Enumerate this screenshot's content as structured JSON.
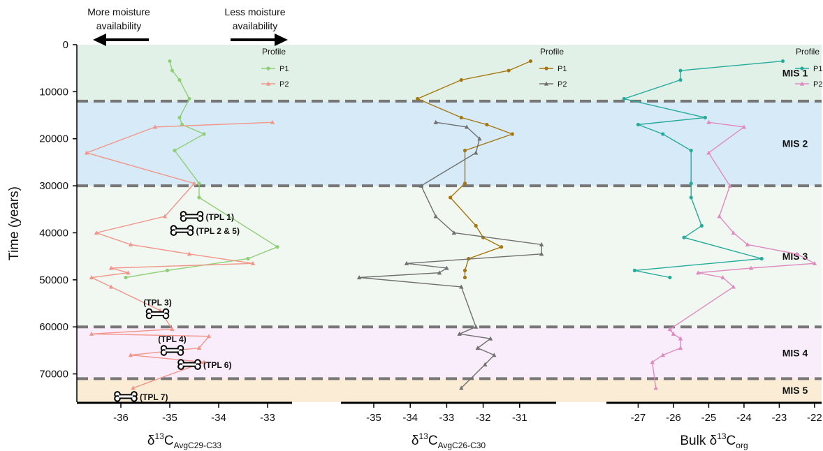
{
  "chart_data": {
    "type": "line",
    "y_axis": {
      "label": "Time (years)",
      "range": [
        0,
        76000
      ],
      "reversed": true,
      "ticks": [
        "0",
        "10000",
        "20000",
        "30000",
        "40000",
        "50000",
        "60000",
        "70000"
      ],
      "tick_values": [
        0,
        10000,
        20000,
        30000,
        40000,
        50000,
        60000,
        70000
      ]
    },
    "annotations": {
      "left_arrow": "More moisture availability",
      "right_arrow": "Less moisture availability"
    },
    "mis_zones": [
      {
        "label": "MIS 1",
        "from": 0,
        "to": 12000,
        "color": "#e2f1e8"
      },
      {
        "label": "MIS 2",
        "from": 12000,
        "to": 30000,
        "color": "#d6eaf8"
      },
      {
        "label": "MIS 3",
        "from": 30000,
        "to": 60000,
        "color": "#f1f7f1"
      },
      {
        "label": "MIS 4",
        "from": 60000,
        "to": 71000,
        "color": "#f9ecfb"
      },
      {
        "label": "MIS 5",
        "from": 71000,
        "to": 76000,
        "color": "#fbecd5"
      }
    ],
    "boundaries": [
      12000,
      30000,
      60000,
      71000
    ],
    "tpl_markers": [
      {
        "label": "(TPL 1)",
        "x": -34.55,
        "y": 36500
      },
      {
        "label": "(TPL 2 & 5)",
        "x": -34.75,
        "y": 39500
      },
      {
        "label": "(TPL 3)",
        "x": -35.25,
        "y": 57200
      },
      {
        "label": "(TPL 4)",
        "x": -34.95,
        "y": 65000
      },
      {
        "label": "(TPL 6)",
        "x": -34.6,
        "y": 68000
      },
      {
        "label": "(TPL 7)",
        "x": -35.9,
        "y": 74800
      }
    ],
    "panels": [
      {
        "xlabel": "δ13C AvgC29-C33",
        "xlabel_main": "δ",
        "xlabel_sup": "13",
        "xlabel_rest": "C",
        "xlabel_sub": "AvgC29-C33",
        "xlim": [
          -36.9,
          -32.5
        ],
        "ticks": [
          -36,
          -35,
          -34,
          -33
        ],
        "tick_labels": [
          "-36",
          "-35",
          "-34",
          "-33"
        ],
        "legend_title": "Profile",
        "series": [
          {
            "name": "P1",
            "color": "#8fcf75",
            "marker": "circle",
            "x": [
              -35.0,
              -34.95,
              -34.8,
              -34.6,
              -34.8,
              -34.75,
              -34.3,
              -34.9,
              -34.4,
              -34.4,
              -32.8,
              -33.4,
              -35.05,
              -35.9
            ],
            "y": [
              3500,
              5500,
              7500,
              11500,
              15500,
              17000,
              19000,
              22500,
              29500,
              32500,
              43000,
              45500,
              48000,
              49500
            ]
          },
          {
            "name": "P2",
            "color": "#f2968a",
            "marker": "triangle",
            "x": [
              -32.9,
              -35.3,
              -36.7,
              -34.5,
              -35.1,
              -36.5,
              -35.8,
              -34.6,
              -33.3,
              -36.2,
              -35.85,
              -36.6,
              -36.2,
              -35.2,
              -34.95,
              -36.6,
              -34.2,
              -34.4,
              -35.8,
              -34.3,
              -35.75
            ],
            "y": [
              16500,
              17500,
              23000,
              29500,
              36500,
              40000,
              42500,
              44500,
              46500,
              47500,
              48500,
              49500,
              51500,
              56500,
              60500,
              61500,
              62000,
              64500,
              66000,
              67500,
              73000
            ]
          }
        ]
      },
      {
        "xlabel": "δ13C AvgC26-C30",
        "xlabel_main": "δ",
        "xlabel_sup": "13",
        "xlabel_rest": "C",
        "xlabel_sub": "AvgC26-C30",
        "xlim": [
          -35.9,
          -30.0
        ],
        "ticks": [
          -35,
          -34,
          -33,
          -32,
          -31
        ],
        "tick_labels": [
          "-35",
          "-34",
          "-33",
          "-32",
          "-31"
        ],
        "legend_title": "Profile",
        "series": [
          {
            "name": "P1",
            "color": "#a6770f",
            "marker": "circle",
            "x": [
              -30.7,
              -31.3,
              -32.6,
              -33.8,
              -32.6,
              -31.9,
              -31.2,
              -32.5,
              -32.5,
              -32.9,
              -32.2,
              -32.0,
              -31.5,
              -32.4,
              -32.5,
              -32.5
            ],
            "y": [
              3500,
              5500,
              7500,
              11500,
              15500,
              17000,
              19000,
              22500,
              29500,
              32500,
              38500,
              41000,
              43000,
              45500,
              48000,
              49500
            ]
          },
          {
            "name": "P2",
            "color": "#707070",
            "marker": "triangle",
            "x": [
              -33.3,
              -32.45,
              -32.1,
              -32.2,
              -33.7,
              -33.3,
              -32.8,
              -30.4,
              -30.4,
              -34.1,
              -33.0,
              -33.2,
              -35.4,
              -32.6,
              -32.2,
              -32.65,
              -31.8,
              -32.15,
              -31.7,
              -31.95,
              -32.6
            ],
            "y": [
              16500,
              17500,
              20000,
              23000,
              30000,
              36500,
              40000,
              42500,
              44500,
              46500,
              47500,
              48500,
              49500,
              51500,
              60000,
              61500,
              62500,
              64500,
              66000,
              68000,
              73000
            ]
          }
        ]
      },
      {
        "xlabel": "Bulk δ13Corg",
        "xlabel_main": "Bulk δ",
        "xlabel_sup": "13",
        "xlabel_rest": "C",
        "xlabel_sub": "org",
        "xlim": [
          -27.9,
          -21.8
        ],
        "ticks": [
          -27,
          -26,
          -25,
          -24,
          -23,
          -22
        ],
        "tick_labels": [
          "-27",
          "-26",
          "-25",
          "-24",
          "-23",
          "-22"
        ],
        "legend_title": "Profile",
        "series": [
          {
            "name": "P1",
            "color": "#25ab9b",
            "marker": "circle",
            "x": [
              -22.9,
              -25.8,
              -25.8,
              -27.4,
              -25.1,
              -27.0,
              -26.3,
              -25.5,
              -25.5,
              -25.5,
              -25.2,
              -25.7,
              -23.5,
              -27.1,
              -26.1
            ],
            "y": [
              3500,
              5500,
              7500,
              11500,
              15500,
              17000,
              19000,
              22500,
              29500,
              32500,
              38500,
              41000,
              45500,
              48000,
              49500
            ]
          },
          {
            "name": "P2",
            "color": "#e08ac0",
            "marker": "triangle",
            "x": [
              -25.0,
              -24.0,
              -25.0,
              -24.4,
              -24.7,
              -24.3,
              -23.9,
              -22.5,
              -22.0,
              -23.8,
              -25.3,
              -24.6,
              -24.3,
              -26.1,
              -26.0,
              -25.8,
              -25.8,
              -26.3,
              -26.6,
              -26.5
            ],
            "y": [
              16500,
              17500,
              23000,
              30000,
              36500,
              40000,
              42500,
              44500,
              46500,
              47500,
              48500,
              49500,
              51500,
              60500,
              61500,
              62500,
              64500,
              66000,
              67500,
              73000
            ]
          }
        ]
      }
    ]
  }
}
